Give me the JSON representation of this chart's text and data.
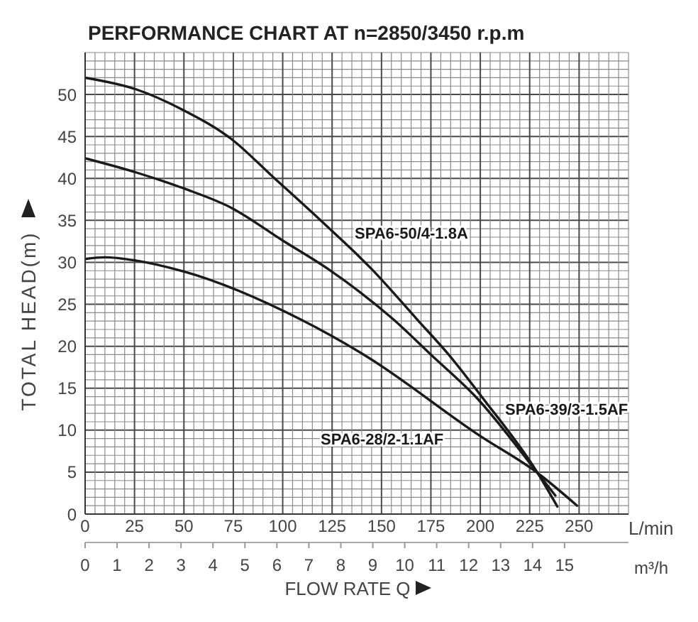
{
  "chart_data": {
    "type": "line",
    "title": "PERFORMANCE CHART AT n=2850/3450 r.p.m",
    "xlabel": "L/min",
    "x2label": "m³/h",
    "ylabel": "TOTAL HEAD(m)",
    "annotations": [
      "FLOW RATE Q"
    ],
    "xlim": [
      0,
      275
    ],
    "xticks": [
      0,
      {
        "value": 5,
        "label": null
      },
      {
        "value": 10,
        "label": null
      },
      {
        "value": 15,
        "label": null
      },
      {
        "value": 20,
        "label": null
      },
      25,
      {
        "value": 30,
        "label": null
      },
      {
        "value": 35,
        "label": null
      },
      {
        "value": 40,
        "label": null
      },
      {
        "value": 45,
        "label": null
      },
      50,
      {
        "value": 55,
        "label": null
      },
      {
        "value": 60,
        "label": null
      },
      {
        "value": 65,
        "label": null
      },
      {
        "value": 70,
        "label": null
      },
      75,
      {
        "value": 80,
        "label": null
      },
      {
        "value": 85,
        "label": null
      },
      {
        "value": 90,
        "label": null
      },
      {
        "value": 95,
        "label": null
      },
      100,
      {
        "value": 105,
        "label": null
      },
      {
        "value": 110,
        "label": null
      },
      {
        "value": 115,
        "label": null
      },
      {
        "value": 120,
        "label": null
      },
      125,
      {
        "value": 130,
        "label": null
      },
      {
        "value": 135,
        "label": null
      },
      {
        "value": 140,
        "label": null
      },
      {
        "value": 145,
        "label": null
      },
      150,
      {
        "value": 155,
        "label": null
      },
      {
        "value": 160,
        "label": null
      },
      {
        "value": 165,
        "label": null
      },
      {
        "value": 170,
        "label": null
      },
      175,
      {
        "value": 180,
        "label": null
      },
      {
        "value": 185,
        "label": null
      },
      {
        "value": 190,
        "label": null
      },
      {
        "value": 195,
        "label": null
      },
      200,
      {
        "value": 205,
        "label": null
      },
      {
        "value": 210,
        "label": null
      },
      {
        "value": 215,
        "label": null
      },
      {
        "value": 220,
        "label": null
      },
      225,
      {
        "value": 230,
        "label": null
      },
      {
        "value": 235,
        "label": null
      },
      {
        "value": 240,
        "label": null
      },
      {
        "value": 245,
        "label": null
      },
      250,
      {
        "value": 255,
        "label": null
      },
      {
        "value": 260,
        "label": null
      },
      {
        "value": 265,
        "label": null
      },
      {
        "value": 270,
        "label": null
      },
      {
        "value": 275,
        "label": null
      }
    ],
    "x2lim": [
      0,
      17
    ],
    "x2ticks": [
      0,
      1,
      2,
      3,
      4,
      5,
      6,
      7,
      8,
      9,
      10,
      11,
      12,
      13,
      14,
      15
    ],
    "ylim": [
      0,
      55
    ],
    "yticks": [
      0,
      {
        "value": 1,
        "label": null
      },
      {
        "value": 2,
        "label": null
      },
      {
        "value": 3,
        "label": null
      },
      {
        "value": 4,
        "label": null
      },
      5,
      {
        "value": 6,
        "label": null
      },
      {
        "value": 7,
        "label": null
      },
      {
        "value": 8,
        "label": null
      },
      {
        "value": 9,
        "label": null
      },
      10,
      {
        "value": 11,
        "label": null
      },
      {
        "value": 12,
        "label": null
      },
      {
        "value": 13,
        "label": null
      },
      {
        "value": 14,
        "label": null
      },
      15,
      {
        "value": 16,
        "label": null
      },
      {
        "value": 17,
        "label": null
      },
      {
        "value": 18,
        "label": null
      },
      {
        "value": 19,
        "label": null
      },
      20,
      {
        "value": 21,
        "label": null
      },
      {
        "value": 22,
        "label": null
      },
      {
        "value": 23,
        "label": null
      },
      {
        "value": 24,
        "label": null
      },
      25,
      {
        "value": 26,
        "label": null
      },
      {
        "value": 27,
        "label": null
      },
      {
        "value": 28,
        "label": null
      },
      {
        "value": 29,
        "label": null
      },
      30,
      {
        "value": 31,
        "label": null
      },
      {
        "value": 32,
        "label": null
      },
      {
        "value": 33,
        "label": null
      },
      {
        "value": 34,
        "label": null
      },
      35,
      {
        "value": 36,
        "label": null
      },
      {
        "value": 37,
        "label": null
      },
      {
        "value": 38,
        "label": null
      },
      {
        "value": 39,
        "label": null
      },
      40,
      {
        "value": 41,
        "label": null
      },
      {
        "value": 42,
        "label": null
      },
      {
        "value": 43,
        "label": null
      },
      {
        "value": 44,
        "label": null
      },
      45,
      {
        "value": 46,
        "label": null
      },
      {
        "value": 47,
        "label": null
      },
      {
        "value": 48,
        "label": null
      },
      {
        "value": 49,
        "label": null
      },
      50,
      {
        "value": 51,
        "label": null
      },
      {
        "value": 52,
        "label": null
      },
      {
        "value": 53,
        "label": null
      },
      {
        "value": 54,
        "label": null
      },
      {
        "value": 55,
        "label": null
      }
    ],
    "grid": true,
    "series": [
      {
        "name": "SPA6-50/4-1.8A",
        "color": "#1a1a1a",
        "x": [
          0,
          26,
          50,
          74,
          95,
          121,
          145,
          168,
          184,
          201,
          229,
          239
        ],
        "values": [
          52.0,
          50.6,
          48.1,
          44.7,
          40.2,
          34.6,
          29.2,
          23.2,
          19.0,
          13.9,
          4.9,
          0.9
        ]
      },
      {
        "name": "SPA6-39/3-1.5AF",
        "color": "#1a1a1a",
        "x": [
          0,
          26,
          50,
          74,
          100,
          123,
          156,
          175,
          198,
          229,
          238
        ],
        "values": [
          42.4,
          40.7,
          38.8,
          36.5,
          32.6,
          29.2,
          23.2,
          19.0,
          13.9,
          4.9,
          2.2
        ]
      },
      {
        "name": "SPA6-28/2-1.1AF",
        "color": "#1a1a1a",
        "x": [
          0,
          10,
          26,
          50,
          109,
          141,
          200,
          229,
          249
        ],
        "values": [
          30.4,
          30.6,
          30.2,
          28.9,
          23.2,
          19.0,
          9.3,
          4.9,
          1.0
        ]
      }
    ]
  }
}
